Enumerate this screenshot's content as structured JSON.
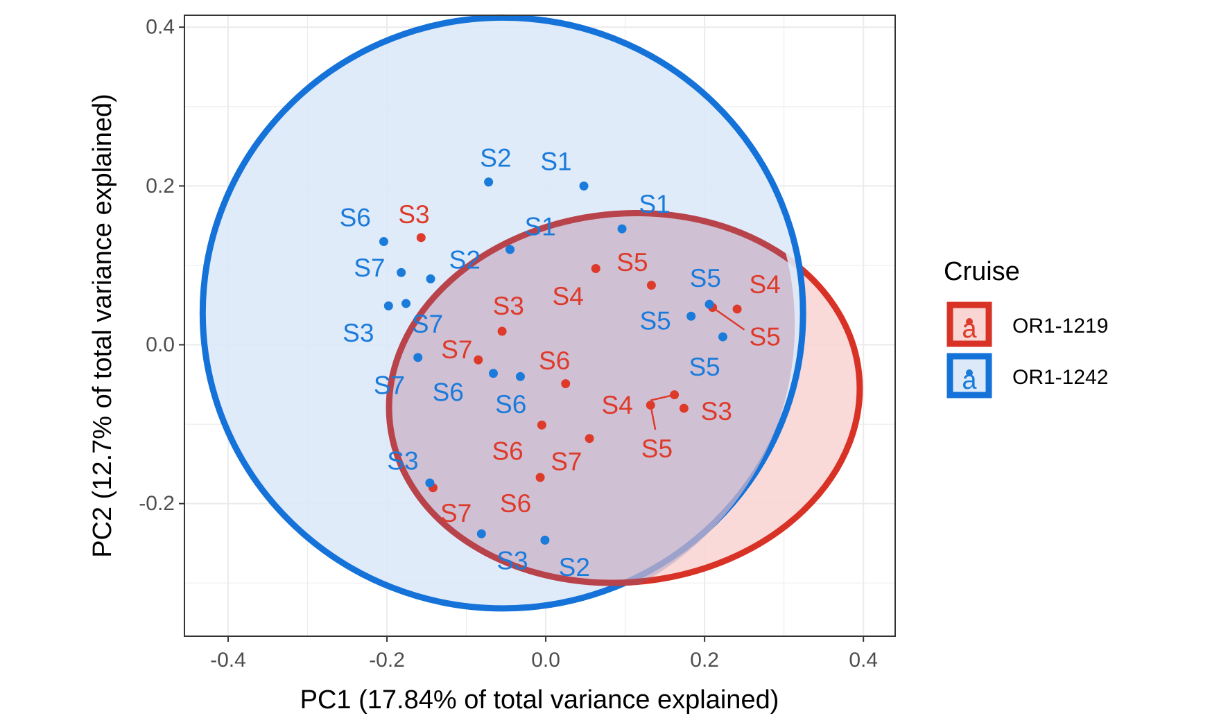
{
  "colors": {
    "OR1-1219": "#de3a2a",
    "OR1-1242": "#1a7bdb",
    "ellipse_fill_OR1-1219": "#f9d6d4",
    "ellipse_fill_OR1-1242": "#dbe9f8",
    "ellipse_stroke_OR1-1219": "#d83226",
    "ellipse_stroke_OR1-1242": "#1572d8",
    "overlap_stroke": "#b8434a",
    "grid": "#ebebeb",
    "axis": "#333333"
  },
  "chart_data": {
    "type": "scatter",
    "xlabel": "PC1 (17.84% of total variance explained)",
    "ylabel": "PC2 (12.7% of total variance explained)",
    "xlim": [
      -0.455,
      0.44
    ],
    "ylim": [
      -0.367,
      0.415
    ],
    "x_ticks": [
      -0.4,
      -0.2,
      0.0,
      0.2,
      0.4
    ],
    "x_tick_labels": [
      "-0.4",
      "-0.2",
      "0.0",
      "0.2",
      "0.4"
    ],
    "y_ticks": [
      -0.2,
      0.0,
      0.2,
      0.4
    ],
    "y_tick_labels": [
      "-0.2",
      "0.0",
      "0.2",
      "0.4"
    ],
    "grid": true,
    "legend": {
      "title": "Cruise",
      "placement": "right",
      "key_glyph": "a",
      "entries": [
        "OR1-1219",
        "OR1-1242"
      ]
    },
    "ellipses": [
      {
        "series": "OR1-1219",
        "cx": 0.099,
        "cy": -0.067,
        "rx": 0.297,
        "ry": 0.232,
        "angle_deg": -6
      },
      {
        "series": "OR1-1242",
        "cx": -0.054,
        "cy": 0.04,
        "rx": 0.378,
        "ry": 0.372,
        "angle_deg": 0
      }
    ],
    "series": [
      {
        "name": "OR1-1219",
        "points": [
          {
            "x": -0.157,
            "y": 0.135,
            "label": "S3",
            "lx": -0.166,
            "ly": 0.164
          },
          {
            "x": 0.063,
            "y": 0.096,
            "label": "S5",
            "lx": 0.109,
            "ly": 0.104
          },
          {
            "x": 0.133,
            "y": 0.075,
            "label": "S4",
            "lx": 0.028,
            "ly": 0.061
          },
          {
            "x": 0.241,
            "y": 0.045,
            "label": "S4",
            "lx": 0.276,
            "ly": 0.076
          },
          {
            "x": 0.21,
            "y": 0.047,
            "label": "S5",
            "lx": 0.276,
            "ly": 0.01
          },
          {
            "x": -0.055,
            "y": 0.017,
            "label": "S3",
            "lx": -0.047,
            "ly": 0.049
          },
          {
            "x": -0.085,
            "y": -0.019,
            "label": "S7",
            "lx": -0.112,
            "ly": -0.006
          },
          {
            "x": 0.025,
            "y": -0.049,
            "label": "S6",
            "lx": 0.011,
            "ly": -0.02
          },
          {
            "x": 0.162,
            "y": -0.063,
            "label": "S4",
            "lx": 0.09,
            "ly": -0.076
          },
          {
            "x": 0.132,
            "y": -0.076,
            "label": "S5",
            "lx": 0.14,
            "ly": -0.131
          },
          {
            "x": 0.174,
            "y": -0.08,
            "label": "S3",
            "lx": 0.215,
            "ly": -0.084
          },
          {
            "x": -0.005,
            "y": -0.101,
            "label": "S6",
            "lx": -0.048,
            "ly": -0.134
          },
          {
            "x": 0.055,
            "y": -0.118,
            "label": "S7",
            "lx": 0.026,
            "ly": -0.147
          },
          {
            "x": -0.007,
            "y": -0.167,
            "label": "S6",
            "lx": -0.038,
            "ly": -0.2
          },
          {
            "x": -0.142,
            "y": -0.18,
            "label": "S7",
            "lx": -0.113,
            "ly": -0.212
          }
        ]
      },
      {
        "name": "OR1-1242",
        "points": [
          {
            "x": -0.072,
            "y": 0.205,
            "label": "S2",
            "lx": -0.063,
            "ly": 0.235
          },
          {
            "x": 0.048,
            "y": 0.2,
            "label": "S1",
            "lx": 0.013,
            "ly": 0.231
          },
          {
            "x": 0.096,
            "y": 0.146,
            "label": "S1",
            "lx": 0.137,
            "ly": 0.177
          },
          {
            "x": -0.204,
            "y": 0.13,
            "label": "S6",
            "lx": -0.24,
            "ly": 0.16
          },
          {
            "x": -0.045,
            "y": 0.12,
            "label": "S1",
            "lx": -0.007,
            "ly": 0.149
          },
          {
            "x": -0.182,
            "y": 0.091,
            "label": "S7",
            "lx": -0.222,
            "ly": 0.097
          },
          {
            "x": -0.145,
            "y": 0.083,
            "label": "S2",
            "lx": -0.102,
            "ly": 0.107
          },
          {
            "x": -0.198,
            "y": 0.049,
            "label": "S3",
            "lx": -0.236,
            "ly": 0.015
          },
          {
            "x": -0.176,
            "y": 0.052,
            "label": "S7",
            "lx": -0.149,
            "ly": 0.026
          },
          {
            "x": 0.206,
            "y": 0.051,
            "label": "S5",
            "lx": 0.201,
            "ly": 0.084
          },
          {
            "x": 0.183,
            "y": 0.036,
            "label": "S5",
            "lx": 0.138,
            "ly": 0.03
          },
          {
            "x": 0.223,
            "y": 0.01,
            "label": "S5",
            "lx": 0.2,
            "ly": -0.028
          },
          {
            "x": -0.161,
            "y": -0.016,
            "label": "S7",
            "lx": -0.197,
            "ly": -0.051
          },
          {
            "x": -0.066,
            "y": -0.036,
            "label": "S6",
            "lx": -0.123,
            "ly": -0.06
          },
          {
            "x": -0.032,
            "y": -0.04,
            "label": "S6",
            "lx": -0.044,
            "ly": -0.075
          },
          {
            "x": -0.146,
            "y": -0.174,
            "label": "S3",
            "lx": -0.18,
            "ly": -0.146
          },
          {
            "x": -0.081,
            "y": -0.238,
            "label": "S3",
            "lx": -0.042,
            "ly": -0.272
          },
          {
            "x": -0.001,
            "y": -0.246,
            "label": "S2",
            "lx": 0.036,
            "ly": -0.28
          }
        ]
      }
    ],
    "leader_lines": [
      {
        "series": "OR1-1219",
        "x1": 0.21,
        "y1": 0.047,
        "x2": 0.25,
        "y2": 0.019
      },
      {
        "series": "OR1-1219",
        "x1": 0.162,
        "y1": -0.063,
        "x2": 0.132,
        "y2": -0.07
      },
      {
        "series": "OR1-1219",
        "x1": 0.132,
        "y1": -0.076,
        "x2": 0.138,
        "y2": -0.107
      }
    ]
  }
}
